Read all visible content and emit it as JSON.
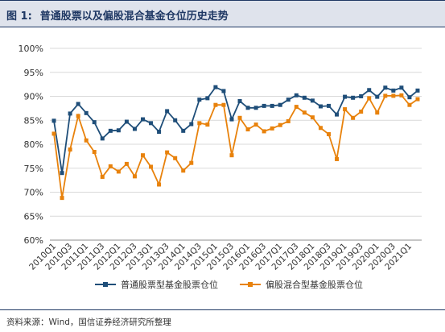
{
  "figure": {
    "label": "图 1:",
    "title": "普通股票以及偏股混合基金仓位历史走势",
    "source": "资料来源：Wind，国信证券经济研究所整理"
  },
  "chart_data": {
    "type": "line",
    "title": "普通股票以及偏股混合基金仓位历史走势",
    "xlabel": "",
    "ylabel": "",
    "ylim": [
      60,
      100
    ],
    "yticks": [
      "60%",
      "65%",
      "70%",
      "75%",
      "80%",
      "85%",
      "90%",
      "95%",
      "100%"
    ],
    "grid": "horizontal",
    "legend_position": "bottom",
    "categories": [
      "2010Q1",
      "2010Q2",
      "2010Q3",
      "2010Q4",
      "2011Q1",
      "2011Q2",
      "2011Q3",
      "2011Q4",
      "2012Q1",
      "2012Q2",
      "2012Q3",
      "2012Q4",
      "2013Q1",
      "2013Q2",
      "2013Q3",
      "2013Q4",
      "2014Q1",
      "2014Q2",
      "2014Q3",
      "2014Q4",
      "2015Q1",
      "2015Q2",
      "2015Q3",
      "2015Q4",
      "2016Q1",
      "2016Q2",
      "2016Q3",
      "2016Q4",
      "2017Q1",
      "2017Q2",
      "2017Q3",
      "2017Q4",
      "2018Q1",
      "2018Q2",
      "2018Q3",
      "2018Q4",
      "2019Q1",
      "2019Q2",
      "2019Q3",
      "2019Q4",
      "2020Q1",
      "2020Q2",
      "2020Q3",
      "2020Q4",
      "2021Q1",
      "2021Q2"
    ],
    "xticks_shown": [
      "2010Q1",
      "2010Q3",
      "2011Q1",
      "2011Q3",
      "2012Q1",
      "2012Q3",
      "2013Q1",
      "2013Q3",
      "2014Q1",
      "2014Q3",
      "2015Q1",
      "2015Q3",
      "2016Q1",
      "2016Q3",
      "2017Q1",
      "2017Q3",
      "2018Q1",
      "2018Q3",
      "2019Q1",
      "2019Q3",
      "2020Q1",
      "2020Q3",
      "2021Q1"
    ],
    "series": [
      {
        "name": "普通股票型基金股票仓位",
        "color": "#1f4e79",
        "values": [
          84.9,
          74.0,
          86.4,
          88.4,
          86.5,
          84.6,
          81.2,
          82.8,
          82.9,
          84.7,
          83.2,
          85.2,
          84.4,
          82.6,
          86.9,
          85.0,
          82.8,
          84.2,
          89.3,
          89.6,
          91.9,
          91.1,
          85.2,
          89.0,
          87.6,
          87.6,
          88.0,
          88.0,
          88.2,
          89.3,
          90.2,
          89.7,
          89.1,
          87.9,
          88.0,
          86.2,
          89.9,
          89.7,
          90.0,
          91.3,
          89.9,
          91.8,
          91.2,
          91.8,
          89.8,
          91.2
        ]
      },
      {
        "name": "偏股混合型基金股票仓位",
        "color": "#e8820c",
        "values": [
          82.2,
          68.8,
          78.9,
          85.9,
          80.8,
          78.4,
          73.2,
          75.4,
          74.3,
          75.9,
          73.3,
          77.7,
          75.3,
          71.6,
          78.3,
          77.1,
          74.5,
          76.1,
          84.4,
          84.1,
          88.2,
          88.2,
          77.7,
          85.5,
          83.1,
          84.1,
          82.7,
          83.3,
          84.0,
          84.8,
          87.8,
          86.6,
          85.6,
          83.4,
          82.1,
          76.9,
          87.3,
          85.5,
          86.8,
          89.6,
          86.6,
          90.1,
          90.1,
          90.2,
          88.2,
          89.4
        ]
      }
    ]
  }
}
